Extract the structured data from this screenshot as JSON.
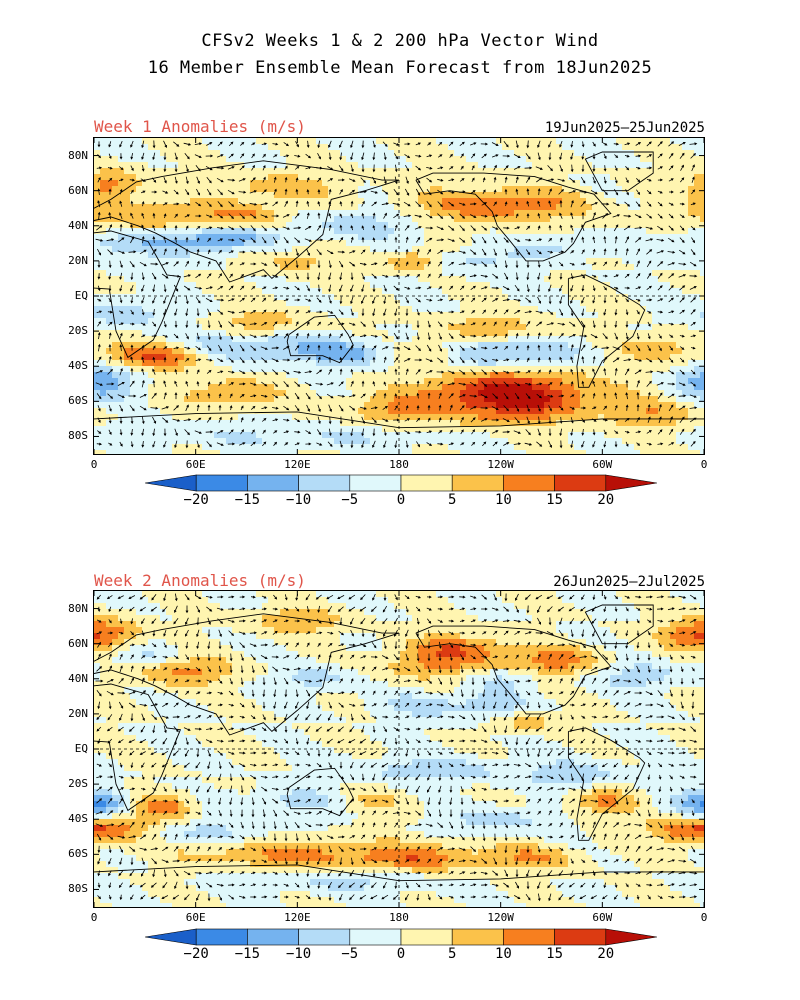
{
  "header": {
    "line1": "CFSv2 Weeks 1 & 2 200 hPa Vector Wind",
    "line2": "16 Member Ensemble Mean Forecast from 18Jun2025"
  },
  "panels": [
    {
      "title": "Week 1 Anomalies (m/s)",
      "date_range": "19Jun2025—25Jun2025",
      "features": [
        [
          10,
          64,
          28,
          6,
          12
        ],
        [
          30,
          45,
          60,
          7,
          10
        ],
        [
          110,
          62,
          50,
          5,
          9
        ],
        [
          88,
          46,
          35,
          5,
          10
        ],
        [
          240,
          52,
          70,
          7,
          14
        ],
        [
          155,
          40,
          45,
          6,
          -8
        ],
        [
          75,
          33,
          40,
          5,
          -14
        ],
        [
          20,
          30,
          60,
          6,
          -9
        ],
        [
          120,
          20,
          30,
          5,
          8
        ],
        [
          190,
          20,
          25,
          4,
          12
        ],
        [
          225,
          20,
          40,
          5,
          -7
        ],
        [
          275,
          28,
          35,
          5,
          -6
        ],
        [
          20,
          -10,
          40,
          6,
          -8
        ],
        [
          100,
          -15,
          40,
          5,
          8
        ],
        [
          235,
          -18,
          45,
          5,
          9
        ],
        [
          50,
          -28,
          60,
          5,
          -6
        ],
        [
          35,
          -33,
          45,
          6,
          18
        ],
        [
          105,
          -30,
          60,
          6,
          -10
        ],
        [
          150,
          -33,
          30,
          5,
          -10
        ],
        [
          200,
          -32,
          25,
          5,
          10
        ],
        [
          240,
          -33,
          60,
          6,
          -13
        ],
        [
          335,
          -30,
          35,
          6,
          8
        ],
        [
          5,
          -48,
          30,
          7,
          -14
        ],
        [
          80,
          -55,
          40,
          6,
          10
        ],
        [
          175,
          -65,
          40,
          6,
          9
        ],
        [
          245,
          -57,
          70,
          10,
          24
        ],
        [
          330,
          -68,
          35,
          6,
          9
        ],
        [
          120,
          -80,
          140,
          5,
          -5
        ]
      ]
    },
    {
      "title": "Week 2 Anomalies (m/s)",
      "date_range": "26Jun2025—2Jul2025",
      "features": [
        [
          10,
          65,
          30,
          7,
          12
        ],
        [
          30,
          52,
          40,
          6,
          -8
        ],
        [
          50,
          45,
          45,
          6,
          13
        ],
        [
          120,
          73,
          40,
          5,
          10
        ],
        [
          130,
          40,
          30,
          5,
          -8
        ],
        [
          195,
          47,
          45,
          6,
          8
        ],
        [
          215,
          57,
          40,
          6,
          13
        ],
        [
          270,
          50,
          50,
          6,
          12
        ],
        [
          240,
          40,
          30,
          5,
          -7
        ],
        [
          320,
          42,
          40,
          6,
          -8
        ],
        [
          350,
          65,
          25,
          6,
          10
        ],
        [
          195,
          25,
          40,
          5,
          -7
        ],
        [
          235,
          25,
          30,
          5,
          -7
        ],
        [
          255,
          15,
          25,
          4,
          8
        ],
        [
          200,
          -12,
          70,
          5,
          -8
        ],
        [
          285,
          -15,
          40,
          6,
          -8
        ],
        [
          5,
          -30,
          25,
          6,
          -10
        ],
        [
          40,
          -33,
          25,
          6,
          12
        ],
        [
          120,
          -30,
          50,
          5,
          -7
        ],
        [
          160,
          -30,
          30,
          5,
          7
        ],
        [
          240,
          -40,
          40,
          5,
          -8
        ],
        [
          300,
          -30,
          30,
          6,
          10
        ],
        [
          355,
          -35,
          30,
          6,
          -8
        ],
        [
          345,
          -45,
          30,
          6,
          12
        ],
        [
          10,
          -45,
          30,
          6,
          13
        ],
        [
          70,
          -48,
          50,
          5,
          -7
        ],
        [
          110,
          -60,
          80,
          6,
          11
        ],
        [
          190,
          -62,
          60,
          6,
          12
        ],
        [
          260,
          -62,
          40,
          5,
          9
        ],
        [
          150,
          -75,
          80,
          5,
          -6
        ]
      ]
    }
  ],
  "lat_labels": [
    "80N",
    "60N",
    "40N",
    "20N",
    "EQ",
    "20S",
    "40S",
    "60S",
    "80S"
  ],
  "lon_labels": [
    "0",
    "60E",
    "120E",
    "180",
    "120W",
    "60W",
    "0"
  ],
  "colorbar": {
    "labels": [
      "−20",
      "−15",
      "−10",
      "−5",
      "0",
      "5",
      "10",
      "15",
      "20"
    ],
    "colors": [
      "#1a5fc9",
      "#3b8ae6",
      "#75b3ef",
      "#b4dcf7",
      "#e0f8fb",
      "#fff5b0",
      "#fbc24a",
      "#f77f1f",
      "#dc3b12",
      "#b80f07"
    ],
    "bounds": [
      -20,
      -15,
      -10,
      -5,
      0,
      5,
      10,
      15,
      20
    ]
  }
}
